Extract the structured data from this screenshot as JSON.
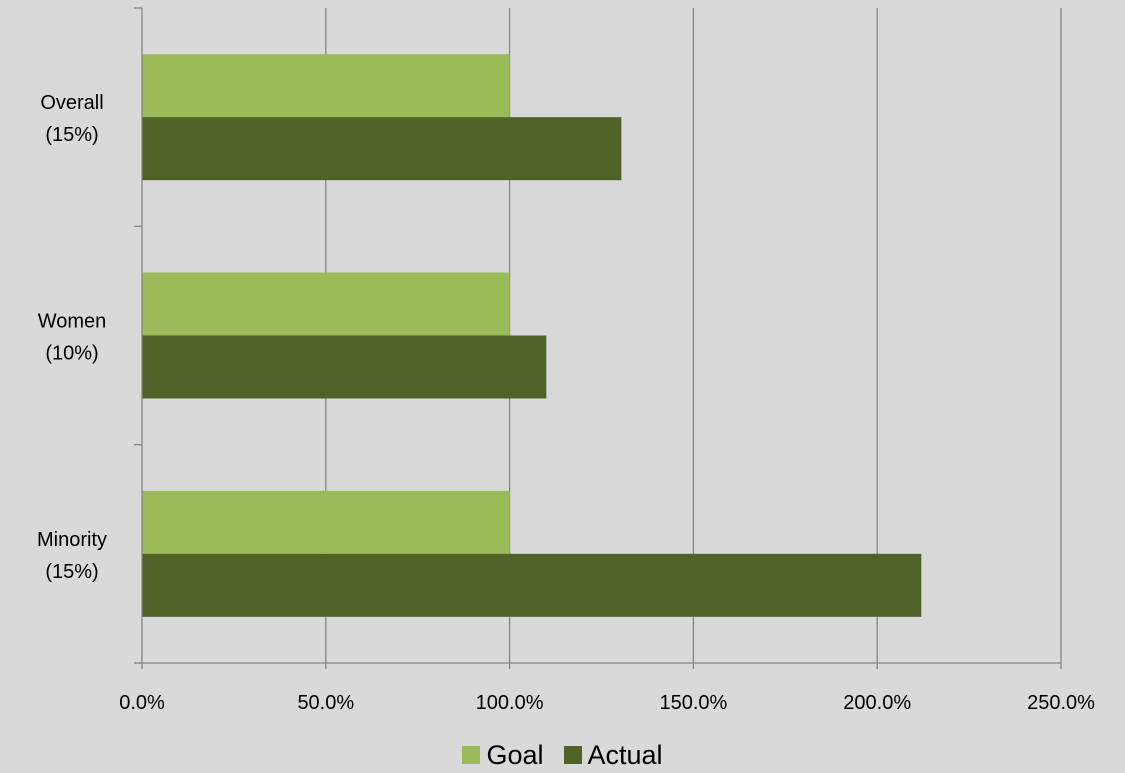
{
  "chart_data": {
    "type": "bar",
    "orientation": "horizontal",
    "categories": [
      {
        "line1": "Overall",
        "line2": "(15%)"
      },
      {
        "line1": "Women",
        "line2": "(10%)"
      },
      {
        "line1": "Minority",
        "line2": "(15%)"
      }
    ],
    "series": [
      {
        "name": "Goal",
        "color": "#9bbb59",
        "values": [
          100,
          100,
          100
        ]
      },
      {
        "name": "Actual",
        "color": "#4f6228",
        "values": [
          130.4,
          110,
          212
        ]
      }
    ],
    "xlim": [
      0,
      250
    ],
    "xticks": [
      "0.0%",
      "50.0%",
      "100.0%",
      "150.0%",
      "200.0%",
      "250.0%"
    ],
    "grid": "vertical",
    "legend_position": "bottom"
  }
}
